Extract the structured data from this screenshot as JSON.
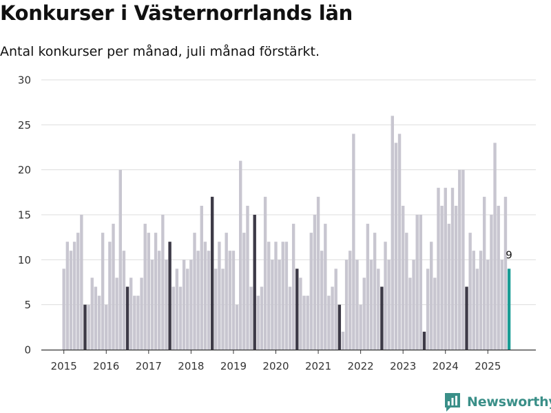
{
  "header": {
    "title": "Konkurser i Västernorrlands län",
    "subtitle": "Antal konkurser per månad, juli månad förstärkt."
  },
  "brand": {
    "name": "Newsworthy",
    "icon": "newsworthy-logo-icon",
    "color": "#3a8f88"
  },
  "colors": {
    "bar": "#c8c6d0",
    "highlight": "#3d3a47",
    "latest": "#199c94",
    "grid": "#dddddd",
    "axis": "#333333"
  },
  "chart_data": {
    "type": "bar",
    "title": "",
    "xlabel": "",
    "ylabel": "",
    "ylim": [
      0,
      30
    ],
    "yticks": [
      "0",
      "5",
      "10",
      "15",
      "20",
      "25",
      "30"
    ],
    "xticks": [
      "2015",
      "2016",
      "2017",
      "2018",
      "2019",
      "2020",
      "2021",
      "2022",
      "2023",
      "2024",
      "2025"
    ],
    "start": "2015-01",
    "highlight_month": "juli",
    "grid": "horizontal",
    "annotations": [
      {
        "month": "2025-07",
        "label": "9"
      }
    ],
    "series": [
      {
        "values": [
          9,
          12,
          11,
          12,
          13,
          15,
          5,
          5,
          8,
          7,
          6,
          13,
          5,
          12,
          14,
          8,
          20,
          11,
          7,
          8,
          6,
          6,
          8,
          14,
          13,
          10,
          13,
          11,
          15,
          10,
          12,
          7,
          9,
          7,
          10,
          9,
          10,
          13,
          11,
          16,
          12,
          11,
          17,
          9,
          12,
          9,
          13,
          11,
          11,
          5,
          21,
          13,
          16,
          7,
          15,
          6,
          7,
          17,
          12,
          10,
          12,
          10,
          12,
          12,
          7,
          14,
          9,
          8,
          6,
          6,
          13,
          15,
          17,
          11,
          14,
          6,
          7,
          9,
          5,
          2,
          10,
          11,
          24,
          10,
          5,
          8,
          14,
          10,
          13,
          9,
          7,
          12,
          10,
          26,
          23,
          24,
          16,
          13,
          8,
          10,
          15,
          15,
          2,
          9,
          12,
          8,
          18,
          16,
          18,
          14,
          18,
          16,
          20,
          20,
          7,
          13,
          11,
          9,
          11,
          17,
          10,
          15,
          23,
          16,
          10,
          17,
          9
        ]
      }
    ]
  }
}
